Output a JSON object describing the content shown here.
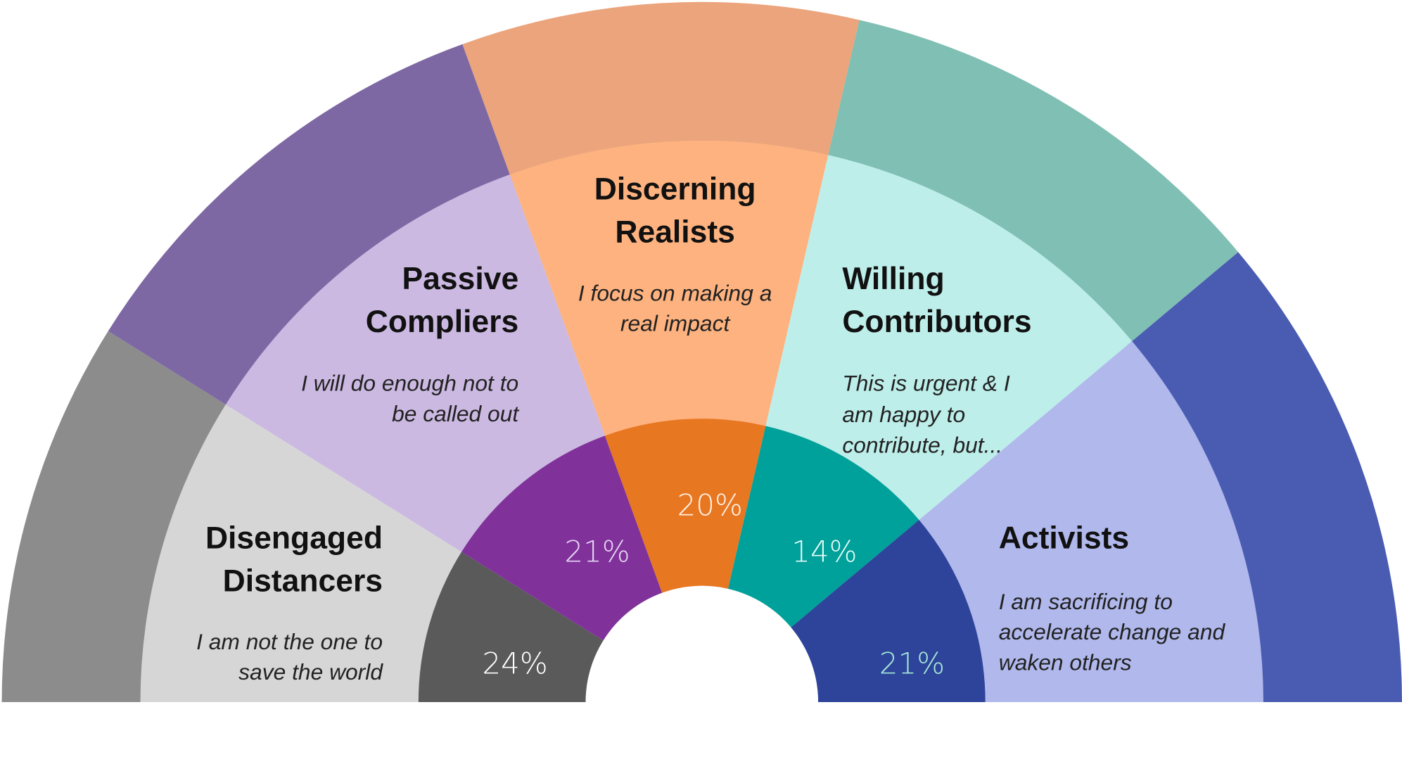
{
  "chart_data": {
    "type": "pie",
    "variant": "semicircle-donut",
    "segments": [
      {
        "name": "Disengaged Distancers",
        "title_lines": [
          "Disengaged",
          "Distancers"
        ],
        "description_lines": [
          "I am not the one to",
          "save the world"
        ],
        "value": 24,
        "label": "24%",
        "color": "#5a5a5a",
        "light_color": "#d6d6d6",
        "photo_tint": "#8c8c8c",
        "label_color": "#ffffff"
      },
      {
        "name": "Passive Compliers",
        "title_lines": [
          "Passive",
          "Compliers"
        ],
        "description_lines": [
          "I will do enough not to",
          "be called out"
        ],
        "value": 21,
        "label": "21%",
        "color": "#80329a",
        "light_color": "#cbb9e2",
        "photo_tint": "#7d68a3",
        "label_color": "#e6d6f4"
      },
      {
        "name": "Discerning Realists",
        "title_lines": [
          "Discerning",
          "Realists"
        ],
        "description_lines": [
          "I focus on making a",
          "real impact"
        ],
        "value": 20,
        "label": "20%",
        "color": "#e87722",
        "light_color": "#fdb27f",
        "photo_tint": "#eba47c",
        "label_color": "#fff3e8"
      },
      {
        "name": "Willing Contributors",
        "title_lines": [
          "Willing",
          "Contributors"
        ],
        "description_lines": [
          "This is urgent & I",
          "am happy to",
          "contribute, but..."
        ],
        "value": 14,
        "label": "14%",
        "color": "#00a19a",
        "light_color": "#bdeeea",
        "photo_tint": "#80bfb3",
        "label_color": "#e6fbf8"
      },
      {
        "name": "Activists",
        "title_lines": [
          "Activists"
        ],
        "description_lines": [
          "I am sacrificing to",
          "accelerate change and",
          "waken others"
        ],
        "value": 21,
        "label": "21%",
        "color": "#2e449a",
        "light_color": "#b0b8ec",
        "photo_tint": "#4a5cb2",
        "label_color": "#a6e8d8"
      }
    ]
  }
}
